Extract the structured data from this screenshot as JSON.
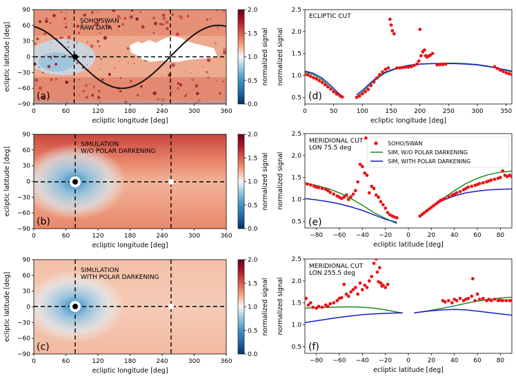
{
  "figure": {
    "colorbar": {
      "label": "normalized signal",
      "ticks": [
        "0.0",
        "0.5",
        "1.0",
        "1.5",
        "2.0"
      ],
      "range": [
        0,
        2
      ]
    },
    "map_axes": {
      "xlabel": "ecliptic longitude [deg]",
      "ylabel": "ecliptic latitude [deg]",
      "xticks": [
        "0",
        "60",
        "120",
        "180",
        "240",
        "300",
        "360"
      ],
      "yticks": [
        "90",
        "60",
        "30",
        "0",
        "−30",
        "−60",
        "−90"
      ]
    },
    "cut_axes": {
      "ylabel": "normalized signal",
      "yticks": [
        "2.5",
        "2.0",
        "1.5",
        "1.0",
        "0.5"
      ],
      "xticks_lon": [
        "0",
        "50",
        "100",
        "150",
        "200",
        "250",
        "300",
        "350"
      ],
      "xticks_lat": [
        "−80",
        "−60",
        "−40",
        "−20",
        "0",
        "20",
        "40",
        "60",
        "80"
      ],
      "xlabel_lon": "ecliptic longitude [deg]",
      "xlabel_lat": "ecliptic latitude [deg]"
    }
  },
  "chart_data": [
    {
      "panel": "(a)",
      "type": "heatmap",
      "annotation": [
        "SOHO/SWAN",
        "RAW DATA"
      ],
      "x_range": [
        0,
        360
      ],
      "y_range": [
        -90,
        90
      ],
      "crosshair_lon": [
        75.5,
        255.5
      ],
      "marker": {
        "lon": 75.5,
        "lat": 0
      },
      "ecliptic_sine_curve": {
        "amplitude_deg": 60,
        "peak_lon_deg": 345
      }
    },
    {
      "panel": "(b)",
      "type": "heatmap",
      "annotation": [
        "SIMULATION",
        "W/O POLAR DARKENING"
      ],
      "x_range": [
        0,
        360
      ],
      "y_range": [
        -90,
        90
      ],
      "crosshair_lon": [
        75.5,
        255.5
      ],
      "marker": {
        "lon": 75.5,
        "lat": 0
      }
    },
    {
      "panel": "(c)",
      "type": "heatmap",
      "annotation": [
        "SIMULATION",
        "WITH POLAR DARKENING"
      ],
      "x_range": [
        0,
        360
      ],
      "y_range": [
        -90,
        90
      ],
      "crosshair_lon": [
        75.5,
        255.5
      ],
      "marker": {
        "lon": 75.5,
        "lat": 0
      }
    },
    {
      "panel": "(d)",
      "type": "line",
      "annotation": [
        "ECLIPTIC CUT"
      ],
      "xlabel": "ecliptic longitude [deg]",
      "ylabel": "normalized signal",
      "xlim": [
        0,
        360
      ],
      "ylim": [
        0.35,
        2.5
      ],
      "series": [
        {
          "name": "SOHO/SWAN",
          "kind": "points",
          "x": [
            0,
            5,
            10,
            15,
            20,
            25,
            30,
            35,
            40,
            45,
            50,
            55,
            60,
            62,
            65,
            90,
            95,
            100,
            105,
            110,
            115,
            120,
            125,
            130,
            135,
            140,
            145,
            148,
            150,
            152,
            155,
            160,
            165,
            170,
            175,
            180,
            185,
            190,
            195,
            198,
            200,
            202,
            205,
            208,
            210,
            212,
            215,
            218,
            222,
            230,
            235,
            240,
            245,
            330,
            335,
            340,
            345,
            350,
            355,
            360
          ],
          "y": [
            1.03,
            1.01,
            0.98,
            0.95,
            0.92,
            0.88,
            0.84,
            0.79,
            0.74,
            0.69,
            0.63,
            0.58,
            0.55,
            0.53,
            0.51,
            0.5,
            0.53,
            0.58,
            0.63,
            0.68,
            0.77,
            0.85,
            0.94,
            1.02,
            1.08,
            1.14,
            1.17,
            2.28,
            2.15,
            2.02,
            1.95,
            1.17,
            1.17,
            1.18,
            1.19,
            1.19,
            1.2,
            1.23,
            1.26,
            1.33,
            2.05,
            1.45,
            1.54,
            1.58,
            1.45,
            1.42,
            1.44,
            1.46,
            1.5,
            1.24,
            1.25,
            1.25,
            1.26,
            1.2,
            1.16,
            1.12,
            1.09,
            1.06,
            1.04,
            1.02
          ]
        },
        {
          "name": "SIM, W/O POLAR DARKENING",
          "kind": "line",
          "x": [
            0,
            15,
            30,
            45,
            55,
            60,
            65
          ],
          "y": [
            1.08,
            1.02,
            0.9,
            0.72,
            0.6,
            0.55,
            0.5
          ]
        },
        {
          "name": "SIM, W/O POLAR DARKENING",
          "kind": "line",
          "x": [
            90,
            100,
            110,
            120,
            130,
            140,
            160,
            180,
            200,
            220,
            240,
            260,
            280,
            300,
            320,
            340,
            360
          ],
          "y": [
            0.52,
            0.62,
            0.74,
            0.87,
            0.97,
            1.06,
            1.16,
            1.22,
            1.26,
            1.27,
            1.28,
            1.28,
            1.27,
            1.25,
            1.21,
            1.15,
            1.08
          ]
        },
        {
          "name": "SIM, WITH POLAR DARKENING",
          "kind": "line",
          "x": [
            0,
            15,
            30,
            45,
            55,
            60,
            65
          ],
          "y": [
            1.1,
            1.05,
            0.94,
            0.77,
            0.64,
            0.58,
            0.52
          ]
        },
        {
          "name": "SIM, WITH POLAR DARKENING",
          "kind": "line",
          "x": [
            90,
            100,
            110,
            120,
            130,
            140,
            160,
            180,
            200,
            220,
            240,
            260,
            280,
            300,
            320,
            340,
            360
          ],
          "y": [
            0.56,
            0.66,
            0.78,
            0.9,
            1.0,
            1.08,
            1.17,
            1.23,
            1.26,
            1.27,
            1.27,
            1.27,
            1.26,
            1.24,
            1.2,
            1.15,
            1.1
          ]
        }
      ]
    },
    {
      "panel": "(e)",
      "type": "line",
      "annotation": [
        "MERIDIONAL CUT",
        "LON 75.5 deg"
      ],
      "xlabel": "ecliptic latitude [deg]",
      "ylabel": "normalized signal",
      "xlim": [
        -90,
        90
      ],
      "ylim": [
        0.35,
        2.5
      ],
      "legend": [
        "SOHO/SWAN",
        "SIM, W/O POLAR DARKENING",
        "SIM, WITH POLAR DARKENING"
      ],
      "series": [
        {
          "name": "SOHO/SWAN",
          "kind": "points",
          "x": [
            -88,
            -85,
            -82,
            -80,
            -78,
            -75,
            -72,
            -70,
            -68,
            -65,
            -62,
            -60,
            -58,
            -56,
            -54,
            -52,
            -50,
            -48,
            -46,
            -44,
            -42,
            -40,
            -38,
            -37,
            -36,
            -34,
            -32,
            -30,
            -28,
            -26,
            -24,
            -22,
            -20,
            -18,
            -16,
            -14,
            -12,
            -10,
            10,
            12,
            14,
            16,
            18,
            20,
            22,
            24,
            26,
            28,
            30,
            32,
            35,
            38,
            40,
            42,
            45,
            48,
            50,
            52,
            55,
            58,
            60,
            62,
            65,
            68,
            70,
            72,
            75,
            78,
            80,
            82,
            84,
            86,
            88,
            90
          ],
          "y": [
            1.35,
            1.33,
            1.3,
            1.28,
            1.27,
            1.25,
            1.23,
            1.2,
            1.16,
            1.12,
            1.08,
            1.05,
            1.02,
            1.05,
            1.1,
            1.0,
            1.06,
            1.12,
            1.2,
            1.4,
            1.8,
            1.75,
            1.6,
            2.4,
            1.55,
            1.15,
            1.3,
            1.25,
            1.1,
            1.05,
            0.95,
            0.88,
            0.8,
            0.7,
            0.65,
            0.62,
            0.6,
            0.58,
            0.62,
            0.66,
            0.7,
            0.74,
            0.78,
            0.82,
            0.86,
            0.9,
            0.94,
            0.98,
            1.0,
            1.02,
            1.07,
            1.1,
            1.12,
            1.15,
            1.18,
            1.22,
            1.25,
            1.28,
            1.3,
            1.32,
            1.34,
            1.36,
            1.38,
            1.4,
            1.42,
            1.44,
            1.46,
            1.48,
            1.5,
            1.65,
            1.55,
            1.52,
            1.55,
            1.52
          ]
        },
        {
          "name": "SIM, W/O POLAR DARKENING",
          "kind": "line",
          "x": [
            -90,
            -80,
            -70,
            -60,
            -50,
            -40,
            -30,
            -20,
            -10
          ],
          "y": [
            1.38,
            1.32,
            1.25,
            1.15,
            1.02,
            0.87,
            0.7,
            0.57,
            0.45
          ]
        },
        {
          "name": "SIM, W/O POLAR DARKENING",
          "kind": "line",
          "x": [
            10,
            20,
            30,
            40,
            50,
            60,
            70,
            80,
            90
          ],
          "y": [
            0.6,
            0.82,
            1.02,
            1.2,
            1.36,
            1.48,
            1.57,
            1.62,
            1.65
          ]
        },
        {
          "name": "SIM, WITH POLAR DARKENING",
          "kind": "line",
          "x": [
            -90,
            -80,
            -70,
            -60,
            -50,
            -40,
            -30,
            -20,
            -10
          ],
          "y": [
            1.02,
            0.99,
            0.95,
            0.9,
            0.83,
            0.75,
            0.65,
            0.55,
            0.48
          ]
        },
        {
          "name": "SIM, WITH POLAR DARKENING",
          "kind": "line",
          "x": [
            10,
            20,
            30,
            40,
            50,
            60,
            70,
            80,
            90
          ],
          "y": [
            0.62,
            0.82,
            0.98,
            1.08,
            1.15,
            1.19,
            1.22,
            1.23,
            1.24
          ]
        }
      ]
    },
    {
      "panel": "(f)",
      "type": "line",
      "annotation": [
        "MERIDIONAL CUT",
        "LON 255.5 deg"
      ],
      "xlabel": "ecliptic latitude [deg]",
      "ylabel": "normalized signal",
      "xlim": [
        -90,
        90
      ],
      "ylim": [
        0.35,
        2.5
      ],
      "series": [
        {
          "name": "SOHO/SWAN",
          "kind": "points",
          "x": [
            -89,
            -87,
            -85,
            -83,
            -80,
            -78,
            -75,
            -72,
            -70,
            -68,
            -65,
            -62,
            -60,
            -58,
            -56,
            -54,
            -52,
            -50,
            -48,
            -46,
            -44,
            -42,
            -40,
            -38,
            -36,
            -34,
            -32,
            -30,
            -28,
            -27,
            -26,
            -25,
            -24,
            -23,
            -22,
            -20,
            -18,
            30,
            32,
            35,
            38,
            40,
            42,
            45,
            48,
            50,
            52,
            55,
            56,
            58,
            60,
            62,
            65,
            68,
            70,
            72,
            75,
            78,
            80,
            82,
            85,
            88,
            90
          ],
          "y": [
            1.6,
            1.45,
            1.5,
            1.4,
            1.38,
            1.42,
            1.4,
            1.45,
            1.42,
            1.48,
            1.5,
            1.55,
            1.6,
            1.62,
            1.92,
            1.7,
            1.65,
            1.75,
            1.8,
            1.85,
            1.7,
            1.95,
            1.8,
            1.9,
            1.85,
            2.0,
            2.1,
            2.4,
            2.5,
            2.2,
            1.98,
            2.3,
            1.95,
            1.88,
            1.9,
            1.85,
            1.92,
            1.55,
            1.52,
            1.55,
            1.5,
            1.58,
            1.55,
            1.6,
            1.55,
            1.58,
            1.6,
            1.65,
            2.05,
            1.55,
            1.7,
            1.58,
            1.6,
            1.55,
            1.58,
            1.55,
            1.58,
            1.55,
            1.56,
            1.55,
            1.55,
            1.55,
            1.55
          ]
        },
        {
          "name": "SIM, W/O POLAR DARKENING",
          "kind": "line",
          "x": [
            -90,
            -70,
            -50,
            -40,
            -30,
            -20,
            -10,
            -5
          ],
          "y": [
            1.38,
            1.4,
            1.41,
            1.4,
            1.38,
            1.34,
            1.29,
            1.27
          ]
        },
        {
          "name": "SIM, W/O POLAR DARKENING",
          "kind": "line",
          "x": [
            5,
            10,
            20,
            30,
            40,
            50,
            60,
            70,
            80,
            90
          ],
          "y": [
            1.27,
            1.29,
            1.33,
            1.38,
            1.43,
            1.49,
            1.54,
            1.58,
            1.61,
            1.63
          ]
        },
        {
          "name": "SIM, WITH POLAR DARKENING",
          "kind": "line",
          "x": [
            -90,
            -80,
            -70,
            -60,
            -50,
            -40,
            -30,
            -20,
            -10,
            -5
          ],
          "y": [
            1.05,
            1.09,
            1.13,
            1.17,
            1.2,
            1.23,
            1.25,
            1.26,
            1.27,
            1.27
          ]
        },
        {
          "name": "SIM, WITH POLAR DARKENING",
          "kind": "line",
          "x": [
            5,
            10,
            20,
            30,
            40,
            50,
            60,
            70,
            80,
            90
          ],
          "y": [
            1.27,
            1.29,
            1.32,
            1.34,
            1.35,
            1.34,
            1.31,
            1.28,
            1.25,
            1.22
          ]
        }
      ]
    }
  ],
  "colors": {
    "soho": "#e8141a",
    "sim_no_darkening": "#1e8c1e",
    "sim_darkening": "#1a1ac8",
    "crosshair": "#000000",
    "ecliptic_curve": "#111111"
  }
}
